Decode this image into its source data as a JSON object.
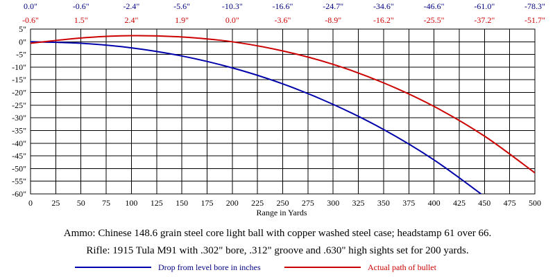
{
  "chart_data": {
    "type": "line",
    "xlabel": "Range in Yards",
    "ylabel": "",
    "xlim": [
      0,
      500
    ],
    "ylim": [
      -60,
      5
    ],
    "x_ticks": [
      0,
      25,
      50,
      75,
      100,
      125,
      150,
      175,
      200,
      225,
      250,
      275,
      300,
      325,
      350,
      375,
      400,
      425,
      450,
      475,
      500
    ],
    "y_ticks": [
      5,
      0,
      -5,
      -10,
      -15,
      -20,
      -25,
      -30,
      -35,
      -40,
      -45,
      -50,
      -55,
      -60
    ],
    "y_tick_labels": [
      "5\"",
      "0\"",
      "-5\"",
      "-10\"",
      "-15\"",
      "-20\"",
      "-25\"",
      "-30\"",
      "-35\"",
      "-40\"",
      "-45\"",
      "-50\"",
      "-55\"",
      "-60\""
    ],
    "grid": true,
    "top_row_blue": [
      "0.0\"",
      "-0.6\"",
      "-2.4\"",
      "-5.6\"",
      "-10.3\"",
      "-16.6\"",
      "-24.7\"",
      "-34.6\"",
      "-46.6\"",
      "-61.0\"",
      "-78.3\""
    ],
    "top_row_red": [
      "-0.6\"",
      "1.5\"",
      "2.4\"",
      "1.9\"",
      "0.0\"",
      "-3.6\"",
      "-8.9\"",
      "-16.2\"",
      "-25.5\"",
      "-37.2\"",
      "-51.7\""
    ],
    "series": [
      {
        "name": "Drop from level bore in inches",
        "color": "#0000aa",
        "x": [
          0,
          50,
          100,
          150,
          200,
          250,
          300,
          350,
          400,
          450
        ],
        "y": [
          0.0,
          -0.6,
          -2.4,
          -5.6,
          -10.3,
          -16.6,
          -24.7,
          -34.6,
          -46.6,
          -61.0
        ]
      },
      {
        "name": "Actual path of bullet",
        "color": "#cc0000",
        "x": [
          0,
          50,
          100,
          150,
          200,
          250,
          300,
          350,
          400,
          450,
          500
        ],
        "y": [
          -0.6,
          1.5,
          2.4,
          1.9,
          0.0,
          -3.6,
          -8.9,
          -16.2,
          -25.5,
          -37.2,
          -51.7
        ]
      }
    ]
  },
  "captions": {
    "ammo": "Ammo:  Chinese 148.6 grain steel core light ball with copper washed steel case; headstamp 61 over 66.",
    "rifle": "Rifle:  1915 Tula M91 with .302\" bore, .312\" groove and .630\" high sights set for 200 yards."
  },
  "legend": {
    "blue_label": "Drop from level bore in inches",
    "red_label": "Actual path of bullet"
  }
}
